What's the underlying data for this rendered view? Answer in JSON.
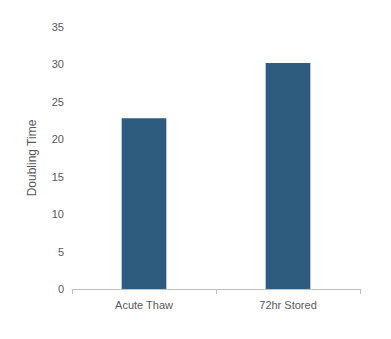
{
  "chart_data": {
    "type": "bar",
    "y_label": "Doubling Time",
    "categories": [
      "Acute Thaw",
      "72hr Stored"
    ],
    "values": [
      22.8,
      30.2
    ],
    "color": "#2e5c7e",
    "ylim": [
      0,
      35
    ],
    "yticks": [
      0,
      5,
      10,
      15,
      20,
      25,
      30,
      35
    ],
    "grid": false
  }
}
